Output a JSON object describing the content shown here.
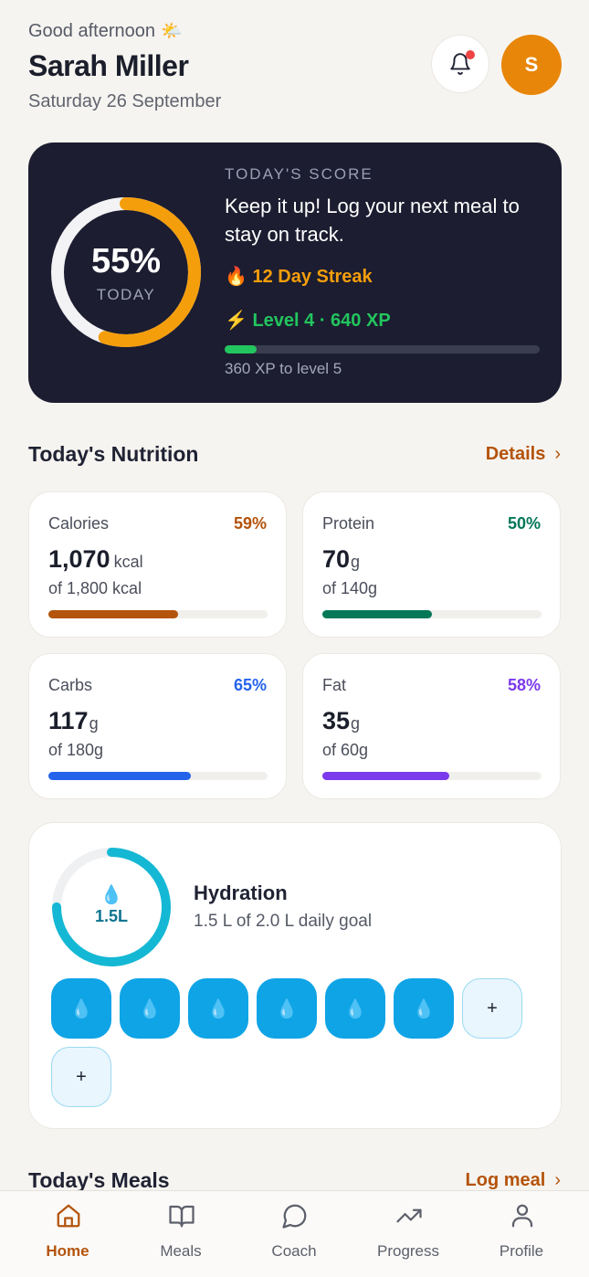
{
  "header": {
    "greeting": "Good afternoon",
    "greeting_icon": "sun-behind-cloud-icon",
    "name": "Sarah Miller",
    "date": "Saturday 26 September",
    "avatar_initial": "S",
    "notification_dot": true
  },
  "score": {
    "percent_value": 0.55,
    "percent_label": "55%",
    "sub_label": "TODAY",
    "title": "TODAY'S SCORE",
    "message": "Keep it up! Log your next meal to stay on track.",
    "streak": "🔥 12 Day Streak",
    "level": "⚡ Level 4 · 640 XP",
    "xp_progress": 0.1,
    "xp_note": "360 XP to level 5",
    "colors": {
      "ring": "#f59e0b",
      "xp": "#22c55e",
      "card": "#1c1d30"
    }
  },
  "nutrition": {
    "title": "Today's Nutrition",
    "link": "Details",
    "items": [
      {
        "name": "Calories",
        "pct": "59%",
        "value": "1,070",
        "unit": "kcal",
        "goal": "of 1,800 kcal",
        "progress": 0.59,
        "color": "#b4530b"
      },
      {
        "name": "Protein",
        "pct": "50%",
        "value": "70",
        "unit": "g",
        "goal": "of 140g",
        "progress": 0.5,
        "color": "#047857"
      },
      {
        "name": "Carbs",
        "pct": "65%",
        "value": "117",
        "unit": "g",
        "goal": "of 180g",
        "progress": 0.65,
        "color": "#2563eb"
      },
      {
        "name": "Fat",
        "pct": "58%",
        "value": "35",
        "unit": "g",
        "goal": "of 60g",
        "progress": 0.58,
        "color": "#7c3aed"
      }
    ]
  },
  "hydration": {
    "amount": "1.5L",
    "progress": 0.75,
    "title": "Hydration",
    "goal_text": "1.5 L of 2.0 L daily goal",
    "glasses_filled": 6,
    "glasses_total": 8,
    "add_label": "+",
    "color": "#14b8d4"
  },
  "meals": {
    "title": "Today's Meals",
    "link": "Log meal"
  },
  "tabs": [
    {
      "label": "Home",
      "icon": "home-icon",
      "active": true
    },
    {
      "label": "Meals",
      "icon": "book-icon",
      "active": false
    },
    {
      "label": "Coach",
      "icon": "chat-bubble-icon",
      "active": false
    },
    {
      "label": "Progress",
      "icon": "trending-up-icon",
      "active": false
    },
    {
      "label": "Profile",
      "icon": "user-icon",
      "active": false
    }
  ]
}
